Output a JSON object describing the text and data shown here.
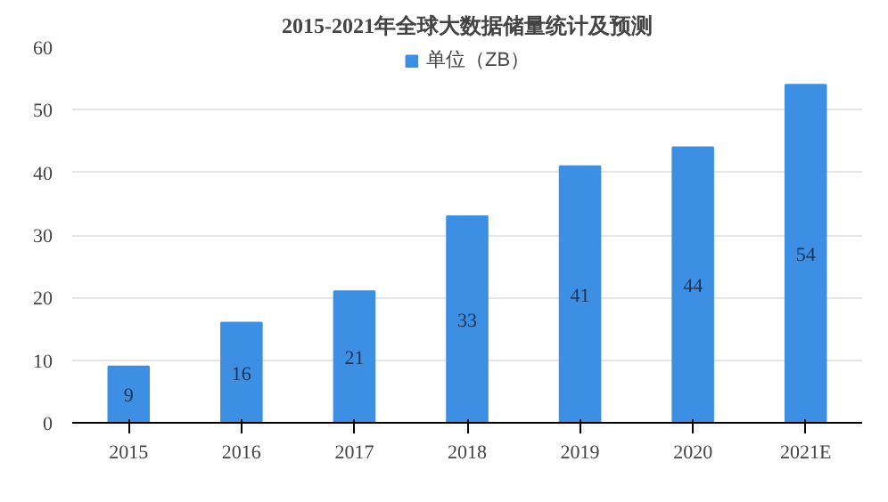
{
  "chart_data": {
    "type": "bar",
    "title": "2015-2021年全球大数据储量统计及预测",
    "categories": [
      "2015",
      "2016",
      "2017",
      "2018",
      "2019",
      "2020",
      "2021E"
    ],
    "series": [
      {
        "name": "单位（ZB）",
        "color": "#3d8fe3",
        "values": [
          9,
          16,
          21,
          33,
          41,
          44,
          54
        ]
      }
    ],
    "ylim": [
      0,
      60
    ],
    "yticks": [
      0,
      10,
      20,
      30,
      40,
      50,
      60
    ],
    "grid": "y",
    "legend": "top",
    "data_labels": true
  }
}
